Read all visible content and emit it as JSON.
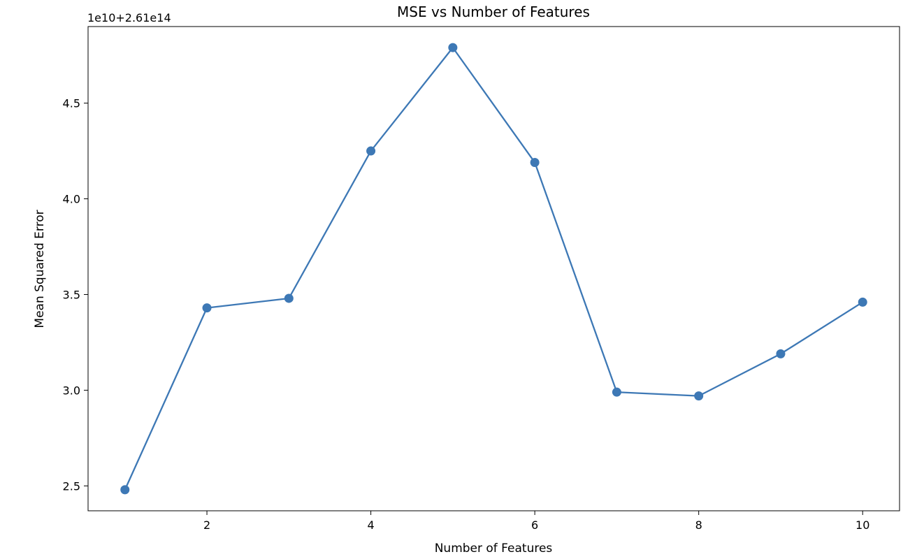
{
  "chart_data": {
    "type": "line",
    "title": "MSE vs Number of Features",
    "xlabel": "Number of Features",
    "ylabel": "Mean Squared Error",
    "y_offset_label": "1e10+2.61e14",
    "x": [
      1,
      2,
      3,
      4,
      5,
      6,
      7,
      8,
      9,
      10
    ],
    "series": [
      {
        "values": [
          2.48,
          3.43,
          3.48,
          4.25,
          4.79,
          4.19,
          2.99,
          2.97,
          3.19,
          3.46
        ]
      }
    ],
    "xlim": [
      0.55,
      10.45
    ],
    "ylim": [
      2.37,
      4.9
    ],
    "x_ticks": [
      2,
      4,
      6,
      8,
      10
    ],
    "x_tick_labels": [
      "2",
      "4",
      "6",
      "8",
      "10"
    ],
    "y_ticks": [
      2.5,
      3.0,
      3.5,
      4.0,
      4.5
    ],
    "y_tick_labels": [
      "2.5",
      "3.0",
      "3.5",
      "4.0",
      "4.5"
    ],
    "grid": false,
    "line_color": "#3d78b5",
    "marker": "circle"
  }
}
